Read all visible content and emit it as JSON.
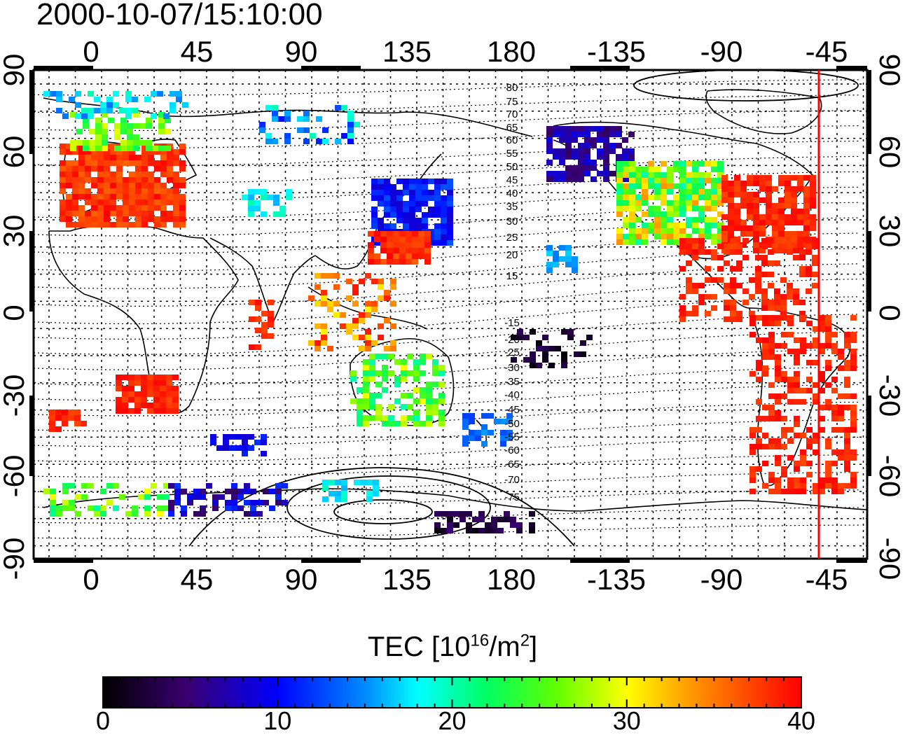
{
  "timestamp": "2000-10-07/15:10:00",
  "longitude_ticks": [
    "0",
    "45",
    "90",
    "135",
    "180",
    "-135",
    "-90",
    "-45"
  ],
  "latitude_ticks": [
    "90",
    "60",
    "30",
    "0",
    "-30",
    "-60",
    "-90"
  ],
  "magnetic_latitude_labels": [
    "80",
    "75",
    "70",
    "65",
    "60",
    "55",
    "50",
    "45",
    "40",
    "35",
    "30",
    "25",
    "20",
    "15",
    "-15",
    "-20",
    "-25",
    "-30",
    "-35",
    "-40",
    "-45",
    "-50",
    "-55",
    "-60",
    "-65",
    "-70",
    "-75"
  ],
  "colorbar": {
    "title_prefix": "TEC  [10",
    "title_exp1": "16",
    "title_mid": "/m",
    "title_exp2": "2",
    "title_suffix": "]",
    "ticks": [
      "0",
      "10",
      "20",
      "30",
      "40"
    ],
    "range": [
      0,
      40
    ],
    "colors": [
      "#000000",
      "#3a0070",
      "#0000ff",
      "#00ffff",
      "#00ff00",
      "#ffff00",
      "#ff8000",
      "#ff0000"
    ]
  },
  "terminator_color": "#ff0000",
  "terminator_longitude": -47
}
